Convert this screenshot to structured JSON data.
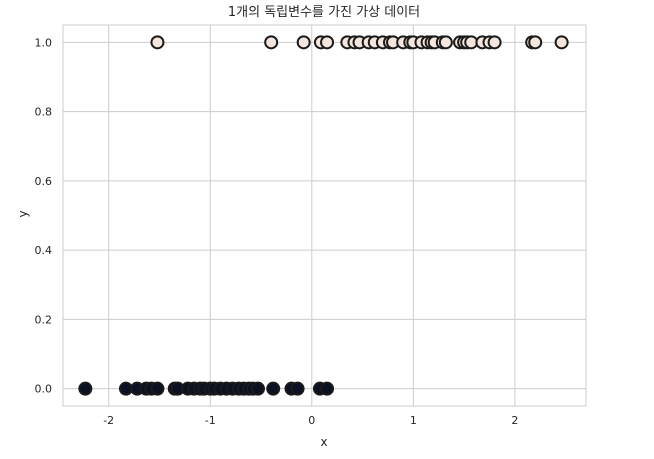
{
  "chart_data": {
    "type": "scatter",
    "title": "1개의 독립변수를 가진 가상 데이터",
    "xlabel": "x",
    "ylabel": "y",
    "xlim": [
      -2.45,
      2.7
    ],
    "ylim": [
      -0.05,
      1.05
    ],
    "xticks": [
      -2,
      -1,
      0,
      1,
      2
    ],
    "xtick_labels": [
      "-2",
      "-1",
      "0",
      "1",
      "2"
    ],
    "yticks": [
      0.0,
      0.2,
      0.4,
      0.6,
      0.8,
      1.0
    ],
    "ytick_labels": [
      "0.0",
      "0.2",
      "0.4",
      "0.6",
      "0.8",
      "1.0"
    ],
    "grid": true,
    "legend": "none",
    "colors": {
      "class0_fill": "#0b1023",
      "class1_fill": "#f4e6dc",
      "edge": "#1a1a1a",
      "grid": "#cccccc",
      "spine": "#cccccc"
    },
    "series": [
      {
        "y": 0,
        "x": [
          -2.23,
          -1.83,
          -1.72,
          -1.63,
          -1.58,
          -1.52,
          -1.35,
          -1.32,
          -1.22,
          -1.16,
          -1.1,
          -1.06,
          -1.0,
          -0.96,
          -0.9,
          -0.84,
          -0.78,
          -0.72,
          -0.67,
          -0.62,
          -0.58,
          -0.53,
          -0.38,
          -0.2,
          -0.14,
          0.08,
          0.15
        ]
      },
      {
        "y": 1,
        "x": [
          -1.52,
          -0.4,
          -0.08,
          0.09,
          0.15,
          0.35,
          0.42,
          0.47,
          0.56,
          0.62,
          0.7,
          0.77,
          0.8,
          0.9,
          0.97,
          1.0,
          1.08,
          1.14,
          1.18,
          1.21,
          1.29,
          1.32,
          1.46,
          1.5,
          1.53,
          1.57,
          1.68,
          1.75,
          1.8,
          2.17,
          2.2,
          2.46
        ]
      }
    ]
  }
}
